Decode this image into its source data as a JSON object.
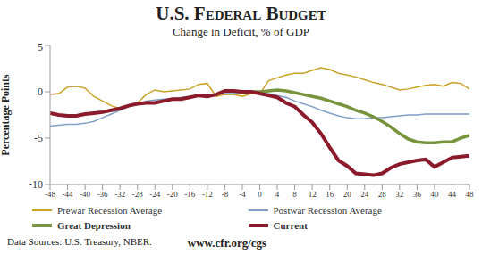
{
  "chart_data": {
    "type": "line",
    "title": "U.S. Federal Budget",
    "subtitle": "Change in Deficit, % of GDP",
    "y_label": "Percentage Points",
    "annotations": [
      "Data Sources: U.S. Treasury, NBER.",
      "www.cfr.org/cgs"
    ],
    "x": [
      -48,
      -46,
      -44,
      -42,
      -40,
      -38,
      -36,
      -34,
      -32,
      -30,
      -28,
      -26,
      -24,
      -22,
      -20,
      -18,
      -16,
      -14,
      -12,
      -10,
      -8,
      -6,
      -4,
      -2,
      0,
      2,
      4,
      6,
      8,
      10,
      12,
      14,
      16,
      18,
      20,
      22,
      24,
      26,
      28,
      30,
      32,
      34,
      36,
      38,
      40,
      42,
      44,
      46,
      48
    ],
    "xlim": [
      -48,
      48
    ],
    "xticks": [
      -48,
      -44,
      -40,
      -36,
      -32,
      -28,
      -24,
      -20,
      -16,
      -12,
      -8,
      -4,
      0,
      4,
      8,
      12,
      16,
      20,
      24,
      28,
      32,
      36,
      40,
      44,
      48
    ],
    "ylim": [
      -10,
      5
    ],
    "yticks": [
      -10,
      -5,
      0,
      5
    ],
    "grid": false,
    "legend": "bottom",
    "series": [
      {
        "name": "Prewar Recession Average",
        "color": "#c9a227",
        "values": [
          -0.3,
          -0.2,
          0.5,
          0.6,
          0.4,
          -0.5,
          -1.0,
          -1.5,
          -1.8,
          -1.5,
          -1.2,
          -0.3,
          0.2,
          0.0,
          0.1,
          0.2,
          0.3,
          0.8,
          0.9,
          -0.5,
          -0.3,
          -0.3,
          -0.5,
          -0.2,
          -0.2,
          1.2,
          1.5,
          1.8,
          2.0,
          2.0,
          2.3,
          2.6,
          2.4,
          2.0,
          1.8,
          1.6,
          1.3,
          1.0,
          0.8,
          0.5,
          0.2,
          0.3,
          0.5,
          0.7,
          0.8,
          0.6,
          1.0,
          0.9,
          0.3
        ]
      },
      {
        "name": "Postwar Recession Average",
        "color": "#7f9fc9",
        "values": [
          -3.7,
          -3.6,
          -3.5,
          -3.5,
          -3.4,
          -3.2,
          -2.8,
          -2.4,
          -2.0,
          -1.6,
          -1.3,
          -1.0,
          -0.9,
          -0.8,
          -0.8,
          -0.6,
          -0.5,
          -0.4,
          -0.3,
          -0.3,
          -0.2,
          -0.2,
          -0.1,
          -0.1,
          0.0,
          -0.2,
          -0.4,
          -0.6,
          -1.0,
          -1.3,
          -1.6,
          -2.0,
          -2.3,
          -2.6,
          -2.8,
          -2.9,
          -2.9,
          -2.8,
          -2.8,
          -2.7,
          -2.6,
          -2.5,
          -2.5,
          -2.4,
          -2.4,
          -2.4,
          -2.4,
          -2.4,
          -2.4
        ]
      },
      {
        "name": "Great Depression",
        "color": "#77933c",
        "values": [
          null,
          null,
          null,
          null,
          null,
          null,
          null,
          null,
          null,
          null,
          null,
          null,
          null,
          null,
          null,
          null,
          null,
          null,
          null,
          null,
          null,
          null,
          0.0,
          0.0,
          0.0,
          0.1,
          0.2,
          0.1,
          -0.1,
          -0.3,
          -0.5,
          -0.7,
          -1.0,
          -1.3,
          -1.6,
          -2.0,
          -2.3,
          -2.7,
          -3.2,
          -3.8,
          -4.5,
          -5.1,
          -5.4,
          -5.5,
          -5.5,
          -5.4,
          -5.4,
          -5.0,
          -4.7
        ]
      },
      {
        "name": "Current",
        "color": "#8b1a2b",
        "values": [
          -2.3,
          -2.5,
          -2.6,
          -2.6,
          -2.4,
          -2.3,
          -2.2,
          -2.0,
          -1.8,
          -1.5,
          -1.3,
          -1.2,
          -1.2,
          -1.0,
          -0.8,
          -0.8,
          -0.6,
          -0.4,
          -0.5,
          -0.3,
          0.1,
          0.1,
          0.0,
          0.0,
          -0.2,
          -0.4,
          -0.6,
          -1.2,
          -1.6,
          -2.5,
          -3.3,
          -4.5,
          -6.0,
          -7.4,
          -8.0,
          -8.8,
          -8.9,
          -9.0,
          -8.8,
          -8.2,
          -7.8,
          -7.6,
          -7.4,
          -7.3,
          -8.1,
          -7.6,
          -7.1,
          -7.0,
          -6.9
        ]
      }
    ]
  }
}
